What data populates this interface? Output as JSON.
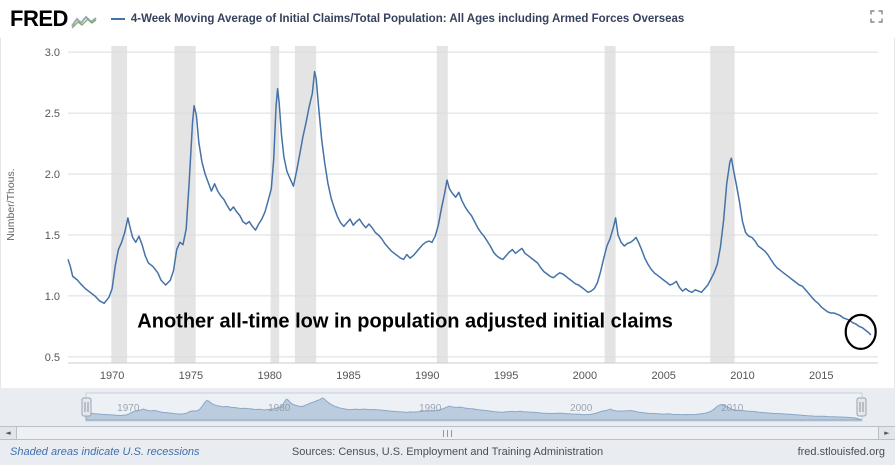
{
  "header": {
    "logo": "FRED",
    "series_title": "4-Week Moving Average of Initial Claims/Total Population: All Ages including Armed Forces Overseas"
  },
  "chart_data": {
    "type": "line",
    "title": "4-Week Moving Average of Initial Claims/Total Population: All Ages including Armed Forces Overseas",
    "xlabel": "",
    "ylabel": "Number/Thous.",
    "xlim": [
      1967.2,
      2018.6
    ],
    "ylim": [
      0.45,
      3.05
    ],
    "x_ticks": [
      1970,
      1975,
      1980,
      1985,
      1990,
      1995,
      2000,
      2005,
      2010,
      2015
    ],
    "y_ticks": [
      0.5,
      1.0,
      1.5,
      2.0,
      2.5,
      3.0
    ],
    "line_color": "#4572a7",
    "recession_color": "#e4e4e4",
    "grid": true,
    "recessions": [
      [
        1969.95,
        1970.95
      ],
      [
        1973.95,
        1975.3
      ],
      [
        1980.05,
        1980.6
      ],
      [
        1981.6,
        1982.95
      ],
      [
        1990.6,
        1991.3
      ],
      [
        2001.25,
        2001.95
      ],
      [
        2007.95,
        2009.5
      ]
    ],
    "points": [
      [
        1967.2,
        1.3
      ],
      [
        1967.35,
        1.24
      ],
      [
        1967.5,
        1.16
      ],
      [
        1967.8,
        1.13
      ],
      [
        1968.0,
        1.1
      ],
      [
        1968.3,
        1.06
      ],
      [
        1968.6,
        1.03
      ],
      [
        1968.9,
        1.0
      ],
      [
        1969.2,
        0.96
      ],
      [
        1969.5,
        0.94
      ],
      [
        1969.8,
        0.99
      ],
      [
        1970.0,
        1.06
      ],
      [
        1970.2,
        1.25
      ],
      [
        1970.4,
        1.38
      ],
      [
        1970.6,
        1.44
      ],
      [
        1970.8,
        1.52
      ],
      [
        1971.0,
        1.64
      ],
      [
        1971.1,
        1.58
      ],
      [
        1971.3,
        1.48
      ],
      [
        1971.5,
        1.44
      ],
      [
        1971.7,
        1.49
      ],
      [
        1971.9,
        1.42
      ],
      [
        1972.1,
        1.33
      ],
      [
        1972.3,
        1.27
      ],
      [
        1972.6,
        1.24
      ],
      [
        1972.9,
        1.19
      ],
      [
        1973.1,
        1.13
      ],
      [
        1973.4,
        1.09
      ],
      [
        1973.7,
        1.13
      ],
      [
        1973.9,
        1.21
      ],
      [
        1974.1,
        1.38
      ],
      [
        1974.3,
        1.44
      ],
      [
        1974.5,
        1.42
      ],
      [
        1974.7,
        1.55
      ],
      [
        1974.9,
        1.95
      ],
      [
        1975.1,
        2.42
      ],
      [
        1975.2,
        2.56
      ],
      [
        1975.35,
        2.48
      ],
      [
        1975.5,
        2.26
      ],
      [
        1975.7,
        2.1
      ],
      [
        1975.9,
        2.0
      ],
      [
        1976.1,
        1.93
      ],
      [
        1976.3,
        1.86
      ],
      [
        1976.5,
        1.92
      ],
      [
        1976.7,
        1.86
      ],
      [
        1976.9,
        1.82
      ],
      [
        1977.1,
        1.79
      ],
      [
        1977.3,
        1.74
      ],
      [
        1977.5,
        1.7
      ],
      [
        1977.7,
        1.73
      ],
      [
        1977.9,
        1.69
      ],
      [
        1978.1,
        1.66
      ],
      [
        1978.3,
        1.61
      ],
      [
        1978.5,
        1.59
      ],
      [
        1978.7,
        1.61
      ],
      [
        1978.9,
        1.57
      ],
      [
        1979.1,
        1.54
      ],
      [
        1979.3,
        1.59
      ],
      [
        1979.5,
        1.63
      ],
      [
        1979.7,
        1.69
      ],
      [
        1979.9,
        1.78
      ],
      [
        1980.1,
        1.88
      ],
      [
        1980.25,
        2.12
      ],
      [
        1980.4,
        2.55
      ],
      [
        1980.5,
        2.7
      ],
      [
        1980.6,
        2.58
      ],
      [
        1980.75,
        2.32
      ],
      [
        1980.9,
        2.14
      ],
      [
        1981.1,
        2.02
      ],
      [
        1981.3,
        1.96
      ],
      [
        1981.5,
        1.9
      ],
      [
        1981.7,
        2.02
      ],
      [
        1981.9,
        2.16
      ],
      [
        1982.1,
        2.3
      ],
      [
        1982.3,
        2.42
      ],
      [
        1982.5,
        2.55
      ],
      [
        1982.7,
        2.66
      ],
      [
        1982.85,
        2.84
      ],
      [
        1982.95,
        2.78
      ],
      [
        1983.1,
        2.55
      ],
      [
        1983.3,
        2.28
      ],
      [
        1983.5,
        2.08
      ],
      [
        1983.7,
        1.92
      ],
      [
        1983.9,
        1.8
      ],
      [
        1984.1,
        1.72
      ],
      [
        1984.3,
        1.65
      ],
      [
        1984.5,
        1.6
      ],
      [
        1984.7,
        1.57
      ],
      [
        1984.9,
        1.6
      ],
      [
        1985.1,
        1.63
      ],
      [
        1985.3,
        1.58
      ],
      [
        1985.5,
        1.61
      ],
      [
        1985.7,
        1.63
      ],
      [
        1985.9,
        1.59
      ],
      [
        1986.1,
        1.56
      ],
      [
        1986.3,
        1.59
      ],
      [
        1986.5,
        1.56
      ],
      [
        1986.7,
        1.52
      ],
      [
        1986.9,
        1.5
      ],
      [
        1987.1,
        1.47
      ],
      [
        1987.3,
        1.43
      ],
      [
        1987.5,
        1.4
      ],
      [
        1987.7,
        1.37
      ],
      [
        1987.9,
        1.35
      ],
      [
        1988.1,
        1.33
      ],
      [
        1988.3,
        1.31
      ],
      [
        1988.5,
        1.3
      ],
      [
        1988.7,
        1.34
      ],
      [
        1988.9,
        1.31
      ],
      [
        1989.1,
        1.33
      ],
      [
        1989.3,
        1.36
      ],
      [
        1989.5,
        1.39
      ],
      [
        1989.7,
        1.42
      ],
      [
        1989.9,
        1.44
      ],
      [
        1990.1,
        1.45
      ],
      [
        1990.3,
        1.44
      ],
      [
        1990.5,
        1.49
      ],
      [
        1990.7,
        1.58
      ],
      [
        1990.9,
        1.72
      ],
      [
        1991.1,
        1.84
      ],
      [
        1991.25,
        1.95
      ],
      [
        1991.4,
        1.88
      ],
      [
        1991.6,
        1.84
      ],
      [
        1991.8,
        1.81
      ],
      [
        1992.0,
        1.85
      ],
      [
        1992.2,
        1.78
      ],
      [
        1992.4,
        1.73
      ],
      [
        1992.6,
        1.69
      ],
      [
        1992.8,
        1.66
      ],
      [
        1993.0,
        1.61
      ],
      [
        1993.2,
        1.56
      ],
      [
        1993.4,
        1.52
      ],
      [
        1993.6,
        1.49
      ],
      [
        1993.8,
        1.45
      ],
      [
        1994.0,
        1.41
      ],
      [
        1994.2,
        1.36
      ],
      [
        1994.4,
        1.33
      ],
      [
        1994.6,
        1.31
      ],
      [
        1994.8,
        1.3
      ],
      [
        1995.0,
        1.33
      ],
      [
        1995.2,
        1.36
      ],
      [
        1995.4,
        1.38
      ],
      [
        1995.6,
        1.35
      ],
      [
        1995.8,
        1.37
      ],
      [
        1996.0,
        1.39
      ],
      [
        1996.2,
        1.35
      ],
      [
        1996.4,
        1.33
      ],
      [
        1996.6,
        1.31
      ],
      [
        1996.8,
        1.29
      ],
      [
        1997.0,
        1.27
      ],
      [
        1997.2,
        1.23
      ],
      [
        1997.4,
        1.2
      ],
      [
        1997.6,
        1.18
      ],
      [
        1997.8,
        1.16
      ],
      [
        1998.0,
        1.15
      ],
      [
        1998.2,
        1.17
      ],
      [
        1998.4,
        1.19
      ],
      [
        1998.6,
        1.18
      ],
      [
        1998.8,
        1.16
      ],
      [
        1999.0,
        1.14
      ],
      [
        1999.2,
        1.12
      ],
      [
        1999.4,
        1.1
      ],
      [
        1999.6,
        1.09
      ],
      [
        1999.8,
        1.07
      ],
      [
        2000.0,
        1.05
      ],
      [
        2000.2,
        1.03
      ],
      [
        2000.4,
        1.04
      ],
      [
        2000.6,
        1.06
      ],
      [
        2000.8,
        1.11
      ],
      [
        2001.0,
        1.2
      ],
      [
        2001.2,
        1.31
      ],
      [
        2001.4,
        1.41
      ],
      [
        2001.6,
        1.47
      ],
      [
        2001.8,
        1.56
      ],
      [
        2001.95,
        1.64
      ],
      [
        2002.1,
        1.5
      ],
      [
        2002.3,
        1.44
      ],
      [
        2002.5,
        1.41
      ],
      [
        2002.7,
        1.43
      ],
      [
        2002.9,
        1.44
      ],
      [
        2003.1,
        1.46
      ],
      [
        2003.25,
        1.48
      ],
      [
        2003.4,
        1.44
      ],
      [
        2003.6,
        1.38
      ],
      [
        2003.8,
        1.31
      ],
      [
        2004.0,
        1.26
      ],
      [
        2004.2,
        1.22
      ],
      [
        2004.4,
        1.19
      ],
      [
        2004.6,
        1.17
      ],
      [
        2004.8,
        1.15
      ],
      [
        2005.0,
        1.13
      ],
      [
        2005.2,
        1.11
      ],
      [
        2005.4,
        1.09
      ],
      [
        2005.6,
        1.1
      ],
      [
        2005.8,
        1.12
      ],
      [
        2006.0,
        1.07
      ],
      [
        2006.2,
        1.04
      ],
      [
        2006.4,
        1.06
      ],
      [
        2006.6,
        1.04
      ],
      [
        2006.8,
        1.03
      ],
      [
        2007.0,
        1.05
      ],
      [
        2007.2,
        1.04
      ],
      [
        2007.4,
        1.03
      ],
      [
        2007.6,
        1.06
      ],
      [
        2007.8,
        1.09
      ],
      [
        2008.0,
        1.14
      ],
      [
        2008.2,
        1.19
      ],
      [
        2008.4,
        1.26
      ],
      [
        2008.6,
        1.4
      ],
      [
        2008.8,
        1.62
      ],
      [
        2009.0,
        1.92
      ],
      [
        2009.2,
        2.1
      ],
      [
        2009.3,
        2.13
      ],
      [
        2009.45,
        2.02
      ],
      [
        2009.6,
        1.92
      ],
      [
        2009.8,
        1.78
      ],
      [
        2010.0,
        1.61
      ],
      [
        2010.2,
        1.52
      ],
      [
        2010.4,
        1.49
      ],
      [
        2010.6,
        1.48
      ],
      [
        2010.8,
        1.45
      ],
      [
        2011.0,
        1.41
      ],
      [
        2011.2,
        1.39
      ],
      [
        2011.4,
        1.37
      ],
      [
        2011.6,
        1.34
      ],
      [
        2011.8,
        1.3
      ],
      [
        2012.0,
        1.26
      ],
      [
        2012.2,
        1.23
      ],
      [
        2012.4,
        1.21
      ],
      [
        2012.6,
        1.19
      ],
      [
        2012.8,
        1.17
      ],
      [
        2013.0,
        1.15
      ],
      [
        2013.2,
        1.13
      ],
      [
        2013.4,
        1.11
      ],
      [
        2013.6,
        1.09
      ],
      [
        2013.8,
        1.08
      ],
      [
        2014.0,
        1.05
      ],
      [
        2014.2,
        1.02
      ],
      [
        2014.4,
        0.99
      ],
      [
        2014.6,
        0.96
      ],
      [
        2014.8,
        0.94
      ],
      [
        2015.0,
        0.91
      ],
      [
        2015.2,
        0.89
      ],
      [
        2015.4,
        0.87
      ],
      [
        2015.6,
        0.86
      ],
      [
        2015.8,
        0.86
      ],
      [
        2016.0,
        0.85
      ],
      [
        2016.2,
        0.84
      ],
      [
        2016.4,
        0.82
      ],
      [
        2016.6,
        0.81
      ],
      [
        2016.8,
        0.8
      ],
      [
        2017.0,
        0.78
      ],
      [
        2017.2,
        0.77
      ],
      [
        2017.4,
        0.75
      ],
      [
        2017.6,
        0.74
      ],
      [
        2017.8,
        0.72
      ],
      [
        2018.0,
        0.7
      ],
      [
        2018.15,
        0.68
      ]
    ],
    "annotation": {
      "text": "Another all-time low in population adjusted initial claims",
      "x": 1971.6,
      "y": 0.74
    },
    "circle": {
      "x": 2017.5,
      "y": 0.705
    }
  },
  "navigator": {
    "decade_labels": [
      1970,
      1980,
      1990,
      2000,
      2010
    ]
  },
  "scrollbar": {
    "left_arrow": "◄",
    "right_arrow": "►"
  },
  "footer": {
    "left": "Shaded areas indicate U.S. recessions",
    "center": "Sources: Census, U.S. Employment and Training Administration",
    "right": "fred.stlouisfed.org"
  }
}
